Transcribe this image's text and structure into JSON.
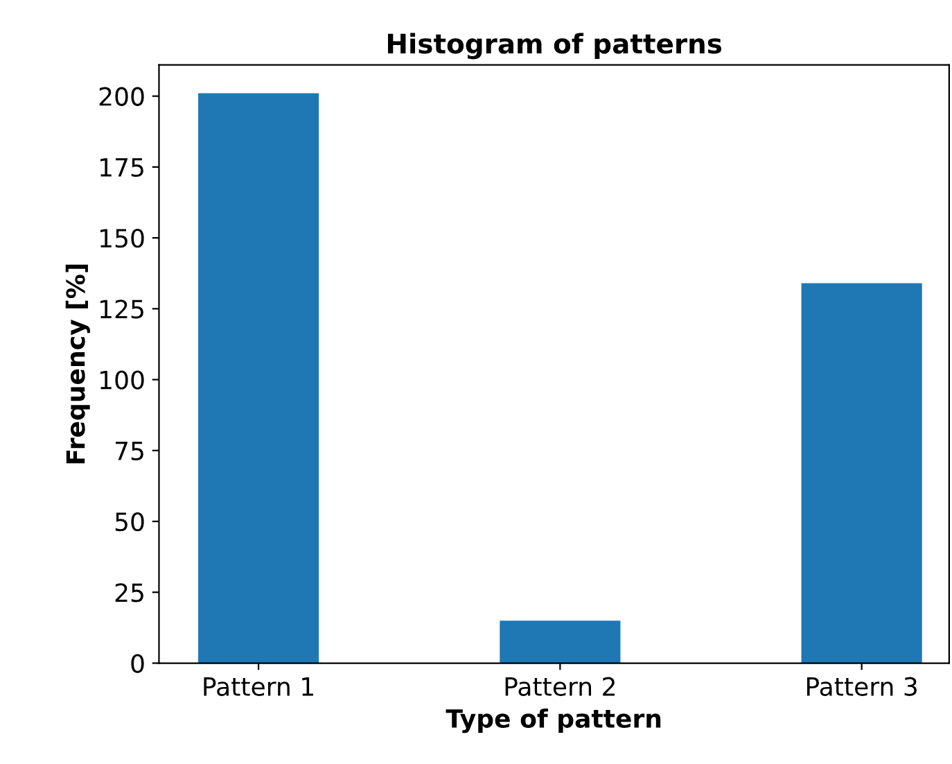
{
  "chart_data": {
    "type": "bar",
    "title": "Histogram of patterns",
    "xlabel": "Type of pattern",
    "ylabel": "Frequency [%]",
    "categories": [
      "Pattern 1",
      "Pattern 2",
      "Pattern 3"
    ],
    "values": [
      201,
      15,
      134
    ],
    "color": "#1f77b4",
    "ylim": [
      0,
      211
    ],
    "yticks": [
      0,
      25,
      50,
      75,
      100,
      125,
      150,
      175,
      200
    ],
    "grid": false,
    "legend": false
  }
}
